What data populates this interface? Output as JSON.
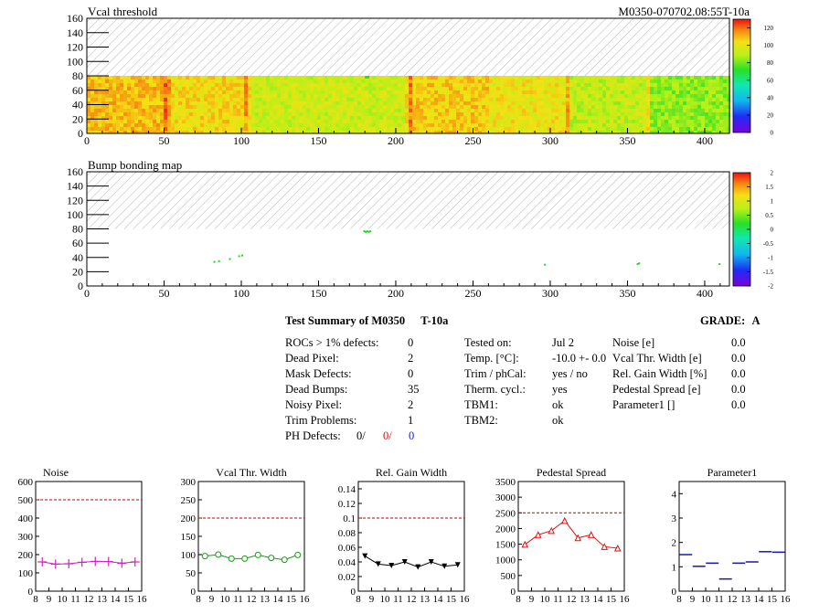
{
  "colors": {
    "hatch": "#b5b5b5",
    "red_ref": "#cc0000",
    "noise_series": "#d020c0",
    "vcal_series": "#1a9a1a",
    "gain_series": "#000000",
    "pedestal_series": "#dd1111",
    "param1_series": "#1a1aa8"
  },
  "chart_data": [
    {
      "id": "vcal-threshold-map",
      "type": "heatmap",
      "title": "Vcal threshold",
      "subtitle": "M0350-070702.08:55T-10a",
      "xlim": [
        0,
        416
      ],
      "ylim": [
        0,
        160
      ],
      "xticks": [
        0,
        50,
        100,
        150,
        200,
        250,
        300,
        350,
        400
      ],
      "yticks": [
        0,
        20,
        40,
        60,
        80,
        100,
        120,
        140,
        160
      ],
      "data_rows": [
        0,
        80
      ],
      "colorbar": {
        "range": [
          0,
          130
        ],
        "ticks": [
          0,
          20,
          40,
          60,
          80,
          100,
          120
        ]
      }
    },
    {
      "id": "bump-bonding-map",
      "type": "heatmap",
      "title": "Bump bonding map",
      "xlim": [
        0,
        416
      ],
      "ylim": [
        0,
        160
      ],
      "xticks": [
        0,
        50,
        100,
        150,
        200,
        250,
        300,
        350,
        400
      ],
      "yticks": [
        0,
        20,
        40,
        60,
        80,
        100,
        120,
        140,
        160
      ],
      "data_rows": [
        0,
        80
      ],
      "colorbar": {
        "range": [
          -2,
          2
        ],
        "ticks": [
          -2,
          -1.5,
          -1,
          -0.5,
          0,
          0.5,
          1,
          1.5,
          2
        ]
      }
    },
    {
      "id": "noise",
      "type": "line",
      "title": "Noise",
      "x": [
        8.5,
        9.5,
        10.5,
        11.5,
        12.5,
        13.5,
        14.5,
        15.5
      ],
      "xlim": [
        8,
        16
      ],
      "xticks": [
        8,
        9,
        10,
        11,
        12,
        13,
        14,
        15,
        16
      ],
      "ylim": [
        0,
        600
      ],
      "yticks": [
        0,
        100,
        200,
        300,
        400,
        500,
        600
      ],
      "reference": 500,
      "marker": "cross",
      "values": [
        160,
        148,
        150,
        158,
        163,
        162,
        153,
        160
      ]
    },
    {
      "id": "vcal-width",
      "type": "line",
      "title": "Vcal Thr. Width",
      "x": [
        8.5,
        9.5,
        10.5,
        11.5,
        12.5,
        13.5,
        14.5,
        15.5
      ],
      "xlim": [
        8,
        16
      ],
      "xticks": [
        8,
        9,
        10,
        11,
        12,
        13,
        14,
        15,
        16
      ],
      "ylim": [
        0,
        300
      ],
      "yticks": [
        0,
        50,
        100,
        150,
        200,
        250,
        300
      ],
      "reference": 200,
      "marker": "circle",
      "values": [
        96,
        100,
        89,
        89,
        99,
        91,
        86,
        99
      ]
    },
    {
      "id": "rel-gain-width",
      "type": "line",
      "title": "Rel. Gain Width",
      "x": [
        8.5,
        9.5,
        10.5,
        11.5,
        12.5,
        13.5,
        14.5,
        15.5
      ],
      "xlim": [
        8,
        16
      ],
      "xticks": [
        8,
        9,
        10,
        11,
        12,
        13,
        14,
        15,
        16
      ],
      "ylim": [
        0,
        0.15
      ],
      "yticks": [
        0,
        0.02,
        0.04,
        0.06,
        0.08,
        0.1,
        0.12,
        0.14
      ],
      "reference": 0.1,
      "marker": "triangle-down",
      "values": [
        0.048,
        0.037,
        0.035,
        0.04,
        0.033,
        0.04,
        0.034,
        0.036
      ]
    },
    {
      "id": "pedestal-spread",
      "type": "line",
      "title": "Pedestal Spread",
      "x": [
        8.5,
        9.5,
        10.5,
        11.5,
        12.5,
        13.5,
        14.5,
        15.5
      ],
      "xlim": [
        8,
        16
      ],
      "xticks": [
        8,
        9,
        10,
        11,
        12,
        13,
        14,
        15,
        16
      ],
      "ylim": [
        0,
        3500
      ],
      "yticks": [
        0,
        500,
        1000,
        1500,
        2000,
        2500,
        3000,
        3500
      ],
      "reference": 2500,
      "marker": "triangle-up",
      "values": [
        1490,
        1800,
        1930,
        2250,
        1700,
        1800,
        1420,
        1370
      ]
    },
    {
      "id": "parameter1",
      "type": "scatter",
      "title": "Parameter1",
      "x": [
        8.5,
        9.5,
        10.5,
        11.5,
        12.5,
        13.5,
        14.5,
        15.5
      ],
      "xlim": [
        8,
        16
      ],
      "xticks": [
        8,
        9,
        10,
        11,
        12,
        13,
        14,
        15,
        16
      ],
      "ylim": [
        0,
        4.5
      ],
      "yticks": [
        0,
        1,
        2,
        3,
        4
      ],
      "marker": "hbar",
      "values": [
        1.5,
        1.02,
        1.15,
        0.5,
        1.15,
        1.2,
        1.62,
        1.6
      ]
    }
  ],
  "summary": {
    "title": "Test Summary of M0350",
    "temp_tag": "T-10a",
    "grade_label": "GRADE:",
    "grade_value": "A",
    "col1": [
      {
        "label": "ROCs > 1% defects:",
        "value": "0"
      },
      {
        "label": "Dead Pixel:",
        "value": "2"
      },
      {
        "label": "Mask Defects:",
        "value": "0"
      },
      {
        "label": "Dead Bumps:",
        "value": "35"
      },
      {
        "label": "Noisy Pixel:",
        "value": "2"
      },
      {
        "label": "Trim Problems:",
        "value": "1"
      }
    ],
    "ph_defects": {
      "label": "PH Defects:",
      "v1": "0/",
      "v2": "0/",
      "v3": "0"
    },
    "col2": [
      {
        "label": "Tested on:",
        "value": "Jul 2"
      },
      {
        "label": "Temp. [°C]:",
        "value": "-10.0 +- 0.0"
      },
      {
        "label": "Trim / phCal:",
        "value": "yes / no"
      },
      {
        "label": "Therm. cycl.:",
        "value": "yes"
      },
      {
        "label": "TBM1:",
        "value": "ok"
      },
      {
        "label": "TBM2:",
        "value": "ok"
      }
    ],
    "col3": [
      {
        "label": "Noise [e]",
        "value": "0.0"
      },
      {
        "label": "Vcal Thr. Width [e]",
        "value": "0.0"
      },
      {
        "label": "Rel. Gain Width [%]",
        "value": "0.0"
      },
      {
        "label": "Pedestal Spread [e]",
        "value": "0.0"
      },
      {
        "label": "Parameter1 []",
        "value": "0.0"
      }
    ]
  }
}
